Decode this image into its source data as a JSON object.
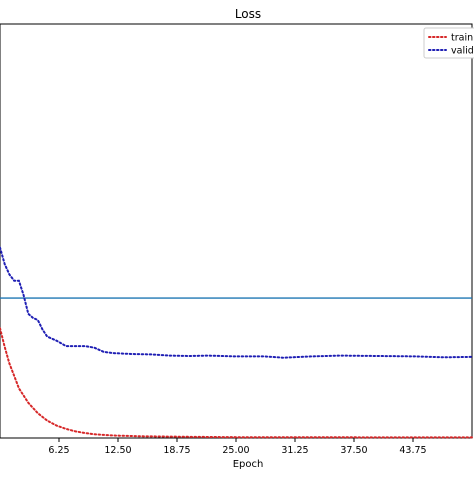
{
  "chart_data": {
    "type": "line",
    "title": "Loss",
    "xlabel": "Epoch",
    "ylabel": "",
    "xlim": [
      0,
      50
    ],
    "ylim": [
      0,
      1
    ],
    "xticks": [
      6.25,
      12.5,
      18.75,
      25.0,
      31.25,
      37.5,
      43.75
    ],
    "xtick_labels": [
      "6.25",
      "12.50",
      "18.75",
      "25.00",
      "31.25",
      "37.50",
      "43.75"
    ],
    "grid": false,
    "legend_position": "top-right",
    "hline": {
      "y": 0.338,
      "color": "#1f77b4"
    },
    "series": [
      {
        "name": "train",
        "color": "#d62728",
        "style": "dotted",
        "x": [
          0,
          0.5,
          1,
          1.5,
          2,
          3,
          4,
          5,
          6,
          7,
          8,
          9,
          10,
          12,
          15,
          20,
          25,
          30,
          35,
          40,
          45,
          50
        ],
        "y": [
          0.265,
          0.22,
          0.18,
          0.15,
          0.12,
          0.085,
          0.06,
          0.042,
          0.03,
          0.022,
          0.016,
          0.012,
          0.009,
          0.006,
          0.004,
          0.003,
          0.002,
          0.002,
          0.002,
          0.0015,
          0.0015,
          0.0015
        ]
      },
      {
        "name": "valid",
        "color": "#1f1fb4",
        "style": "dotted",
        "x": [
          0,
          0.5,
          1,
          1.5,
          2,
          2.5,
          3,
          3.5,
          4,
          4.5,
          5,
          6,
          7,
          8,
          9,
          10,
          11,
          12,
          14,
          16,
          18,
          20,
          22,
          25,
          28,
          30,
          33,
          36,
          40,
          44,
          47,
          50
        ],
        "y": [
          0.46,
          0.42,
          0.395,
          0.38,
          0.38,
          0.345,
          0.3,
          0.29,
          0.285,
          0.262,
          0.245,
          0.235,
          0.222,
          0.222,
          0.222,
          0.218,
          0.208,
          0.205,
          0.203,
          0.202,
          0.199,
          0.198,
          0.199,
          0.197,
          0.197,
          0.194,
          0.197,
          0.199,
          0.198,
          0.197,
          0.195,
          0.196
        ]
      }
    ]
  }
}
